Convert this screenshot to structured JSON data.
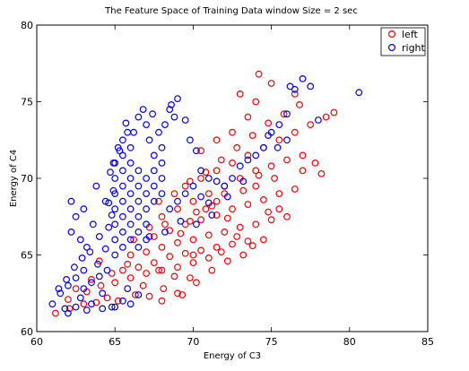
{
  "chart_data": {
    "type": "scatter",
    "title": "The Feature Space of Training Data window Size = 2 sec",
    "xlabel": "Energy of C3",
    "ylabel": "Energy of C4",
    "xlim": [
      60,
      85
    ],
    "ylim": [
      60,
      80
    ],
    "xticks": [
      60,
      65,
      70,
      75,
      80,
      85
    ],
    "yticks": [
      60,
      65,
      70,
      75,
      80
    ],
    "grid": false,
    "legend_position": "top-right",
    "marker": "open-circle",
    "series": [
      {
        "name": "left",
        "color": "#ff0000",
        "points": [
          [
            61.2,
            61.2
          ],
          [
            62.1,
            61.5
          ],
          [
            63.0,
            61.8
          ],
          [
            63.8,
            61.9
          ],
          [
            64.5,
            62.2
          ],
          [
            65.2,
            62.0
          ],
          [
            66.3,
            62.4
          ],
          [
            67.2,
            62.3
          ],
          [
            68.1,
            62.8
          ],
          [
            69.0,
            62.5
          ],
          [
            62.0,
            62.1
          ],
          [
            63.2,
            62.6
          ],
          [
            64.1,
            63.0
          ],
          [
            65.0,
            63.2
          ],
          [
            66.0,
            63.5
          ],
          [
            67.0,
            63.8
          ],
          [
            68.0,
            64.0
          ],
          [
            69.0,
            64.2
          ],
          [
            70.0,
            64.5
          ],
          [
            71.0,
            64.8
          ],
          [
            66.5,
            64.2
          ],
          [
            67.5,
            64.5
          ],
          [
            68.5,
            64.9
          ],
          [
            69.5,
            65.1
          ],
          [
            70.5,
            65.3
          ],
          [
            71.5,
            65.5
          ],
          [
            72.5,
            65.7
          ],
          [
            73.5,
            65.9
          ],
          [
            74.5,
            66.0
          ],
          [
            70.2,
            63.2
          ],
          [
            66.0,
            65.0
          ],
          [
            67.0,
            65.2
          ],
          [
            68.0,
            65.5
          ],
          [
            69.0,
            65.8
          ],
          [
            70.0,
            66.0
          ],
          [
            71.0,
            66.3
          ],
          [
            72.0,
            66.5
          ],
          [
            73.0,
            66.8
          ],
          [
            74.0,
            67.0
          ],
          [
            75.0,
            67.3
          ],
          [
            67.5,
            66.2
          ],
          [
            68.5,
            66.6
          ],
          [
            69.5,
            67.0
          ],
          [
            70.5,
            67.3
          ],
          [
            71.5,
            67.6
          ],
          [
            72.5,
            68.0
          ],
          [
            73.5,
            68.3
          ],
          [
            74.5,
            68.6
          ],
          [
            75.5,
            69.0
          ],
          [
            76.5,
            69.3
          ],
          [
            68.0,
            67.5
          ],
          [
            69.0,
            68.0
          ],
          [
            70.0,
            68.5
          ],
          [
            71.0,
            69.0
          ],
          [
            72.0,
            69.5
          ],
          [
            73.0,
            70.0
          ],
          [
            74.0,
            70.5
          ],
          [
            75.0,
            70.8
          ],
          [
            76.0,
            71.2
          ],
          [
            77.0,
            71.5
          ],
          [
            69.5,
            69.5
          ],
          [
            70.5,
            70.0
          ],
          [
            71.5,
            70.5
          ],
          [
            72.5,
            71.0
          ],
          [
            73.5,
            71.5
          ],
          [
            74.5,
            72.0
          ],
          [
            75.5,
            72.5
          ],
          [
            76.5,
            73.0
          ],
          [
            77.5,
            73.5
          ],
          [
            78.5,
            74.0
          ],
          [
            70.5,
            71.8
          ],
          [
            71.5,
            72.5
          ],
          [
            72.5,
            73.0
          ],
          [
            73.5,
            74.0
          ],
          [
            74.0,
            75.0
          ],
          [
            73.0,
            75.5
          ],
          [
            74.2,
            76.8
          ],
          [
            75.0,
            76.2
          ],
          [
            76.5,
            75.5
          ],
          [
            79.0,
            74.3
          ],
          [
            77.8,
            71.0
          ],
          [
            78.2,
            70.3
          ],
          [
            77.0,
            70.5
          ],
          [
            76.0,
            67.5
          ],
          [
            75.5,
            68.0
          ],
          [
            74.0,
            69.5
          ],
          [
            72.0,
            69.0
          ],
          [
            71.5,
            68.5
          ],
          [
            70.8,
            68.0
          ],
          [
            69.8,
            67.2
          ],
          [
            64.0,
            64.6
          ],
          [
            65.5,
            64.0
          ],
          [
            66.8,
            63.0
          ],
          [
            68.0,
            62.0
          ],
          [
            69.3,
            62.4
          ],
          [
            70.0,
            65.0
          ],
          [
            71.8,
            65.2
          ],
          [
            72.8,
            66.2
          ],
          [
            73.8,
            65.6
          ],
          [
            74.8,
            67.8
          ],
          [
            62.5,
            62.8
          ],
          [
            63.5,
            63.4
          ],
          [
            64.8,
            63.8
          ],
          [
            65.8,
            64.4
          ],
          [
            67.8,
            64.0
          ],
          [
            68.8,
            63.6
          ],
          [
            69.8,
            63.5
          ],
          [
            71.2,
            64.0
          ],
          [
            72.2,
            64.6
          ],
          [
            73.2,
            65.0
          ],
          [
            66.2,
            66.0
          ],
          [
            67.2,
            66.8
          ],
          [
            68.2,
            67.0
          ],
          [
            69.2,
            66.4
          ],
          [
            70.2,
            67.8
          ],
          [
            71.2,
            68.2
          ],
          [
            72.2,
            67.4
          ],
          [
            73.2,
            69.2
          ],
          [
            74.2,
            70.2
          ],
          [
            75.2,
            70.0
          ],
          [
            67.8,
            68.5
          ],
          [
            68.8,
            69.0
          ],
          [
            69.8,
            69.8
          ],
          [
            70.8,
            70.4
          ],
          [
            71.8,
            71.2
          ],
          [
            72.8,
            72.0
          ],
          [
            73.8,
            72.8
          ],
          [
            74.8,
            73.6
          ],
          [
            75.8,
            74.2
          ],
          [
            76.8,
            74.8
          ]
        ]
      },
      {
        "name": "right",
        "color": "#0000ff",
        "points": [
          [
            61.0,
            61.8
          ],
          [
            61.5,
            62.5
          ],
          [
            62.0,
            63.0
          ],
          [
            62.5,
            63.5
          ],
          [
            63.0,
            64.0
          ],
          [
            61.8,
            61.5
          ],
          [
            62.8,
            62.2
          ],
          [
            63.5,
            61.8
          ],
          [
            64.2,
            62.5
          ],
          [
            64.8,
            61.6
          ],
          [
            62.2,
            66.5
          ],
          [
            62.5,
            67.5
          ],
          [
            62.8,
            66.0
          ],
          [
            63.2,
            65.5
          ],
          [
            63.6,
            67.0
          ],
          [
            64.0,
            66.2
          ],
          [
            63.0,
            68.0
          ],
          [
            64.4,
            68.5
          ],
          [
            62.2,
            68.5
          ],
          [
            63.8,
            69.5
          ],
          [
            65.0,
            65.0
          ],
          [
            65.0,
            66.0
          ],
          [
            65.0,
            67.0
          ],
          [
            65.0,
            68.0
          ],
          [
            65.0,
            69.0
          ],
          [
            65.0,
            70.0
          ],
          [
            65.0,
            71.0
          ],
          [
            65.2,
            72.0
          ],
          [
            65.5,
            72.5
          ],
          [
            65.8,
            73.0
          ],
          [
            65.5,
            65.5
          ],
          [
            65.5,
            66.5
          ],
          [
            65.5,
            67.5
          ],
          [
            65.5,
            68.5
          ],
          [
            65.5,
            69.5
          ],
          [
            65.5,
            70.5
          ],
          [
            65.5,
            71.5
          ],
          [
            66.0,
            66.0
          ],
          [
            66.0,
            67.0
          ],
          [
            66.0,
            68.0
          ],
          [
            66.0,
            69.0
          ],
          [
            66.0,
            70.0
          ],
          [
            66.0,
            71.0
          ],
          [
            66.0,
            72.0
          ],
          [
            66.2,
            73.0
          ],
          [
            66.5,
            74.0
          ],
          [
            66.8,
            74.5
          ],
          [
            67.0,
            73.5
          ],
          [
            67.2,
            72.5
          ],
          [
            67.5,
            71.5
          ],
          [
            66.5,
            65.5
          ],
          [
            66.5,
            66.5
          ],
          [
            66.5,
            67.5
          ],
          [
            66.5,
            68.5
          ],
          [
            66.5,
            69.5
          ],
          [
            66.5,
            70.5
          ],
          [
            67.0,
            66.0
          ],
          [
            67.0,
            67.0
          ],
          [
            67.0,
            68.0
          ],
          [
            67.0,
            69.0
          ],
          [
            67.0,
            70.0
          ],
          [
            67.5,
            68.5
          ],
          [
            67.5,
            69.5
          ],
          [
            67.5,
            70.5
          ],
          [
            68.0,
            69.0
          ],
          [
            68.0,
            70.0
          ],
          [
            68.0,
            71.0
          ],
          [
            68.0,
            72.0
          ],
          [
            68.2,
            73.5
          ],
          [
            68.5,
            74.5
          ],
          [
            68.8,
            74.0
          ],
          [
            69.0,
            75.2
          ],
          [
            68.6,
            74.8
          ],
          [
            69.5,
            73.8
          ],
          [
            69.8,
            72.5
          ],
          [
            70.2,
            71.8
          ],
          [
            70.5,
            70.5
          ],
          [
            71.0,
            70.0
          ],
          [
            71.5,
            69.8
          ],
          [
            72.0,
            69.5
          ],
          [
            68.5,
            68.0
          ],
          [
            69.0,
            68.5
          ],
          [
            69.5,
            69.0
          ],
          [
            70.0,
            69.5
          ],
          [
            70.5,
            68.8
          ],
          [
            71.0,
            68.4
          ],
          [
            72.5,
            70.0
          ],
          [
            73.0,
            70.8
          ],
          [
            73.5,
            71.2
          ],
          [
            74.0,
            71.5
          ],
          [
            74.5,
            72.0
          ],
          [
            75.0,
            73.0
          ],
          [
            75.5,
            73.5
          ],
          [
            76.0,
            74.2
          ],
          [
            76.2,
            76.0
          ],
          [
            76.5,
            75.8
          ],
          [
            77.0,
            76.5
          ],
          [
            77.5,
            76.0
          ],
          [
            78.0,
            73.8
          ],
          [
            80.6,
            75.6
          ],
          [
            74.8,
            72.8
          ],
          [
            75.4,
            72.0
          ],
          [
            76.0,
            72.5
          ],
          [
            73.2,
            69.8
          ],
          [
            72.2,
            68.8
          ],
          [
            71.2,
            67.6
          ],
          [
            70.2,
            67.0
          ],
          [
            69.2,
            67.2
          ],
          [
            68.2,
            66.5
          ],
          [
            67.2,
            66.2
          ],
          [
            63.0,
            62.8
          ],
          [
            63.5,
            63.2
          ],
          [
            64.0,
            63.6
          ],
          [
            64.5,
            64.0
          ],
          [
            64.2,
            61.5
          ],
          [
            65.0,
            61.6
          ],
          [
            65.5,
            62.0
          ],
          [
            66.0,
            61.8
          ],
          [
            65.8,
            62.8
          ],
          [
            66.5,
            62.4
          ],
          [
            62.0,
            61.2
          ],
          [
            62.5,
            61.6
          ],
          [
            63.2,
            61.4
          ],
          [
            61.4,
            62.8
          ],
          [
            61.9,
            63.4
          ],
          [
            62.4,
            64.2
          ],
          [
            62.9,
            64.8
          ],
          [
            63.4,
            65.2
          ],
          [
            63.9,
            64.4
          ],
          [
            64.4,
            65.4
          ],
          [
            64.6,
            66.8
          ],
          [
            64.8,
            67.6
          ],
          [
            64.6,
            68.4
          ],
          [
            64.9,
            69.2
          ],
          [
            64.7,
            70.4
          ],
          [
            64.9,
            71.0
          ],
          [
            65.3,
            71.8
          ],
          [
            65.7,
            73.6
          ],
          [
            67.8,
            73.0
          ],
          [
            67.4,
            74.2
          ]
        ]
      }
    ]
  }
}
